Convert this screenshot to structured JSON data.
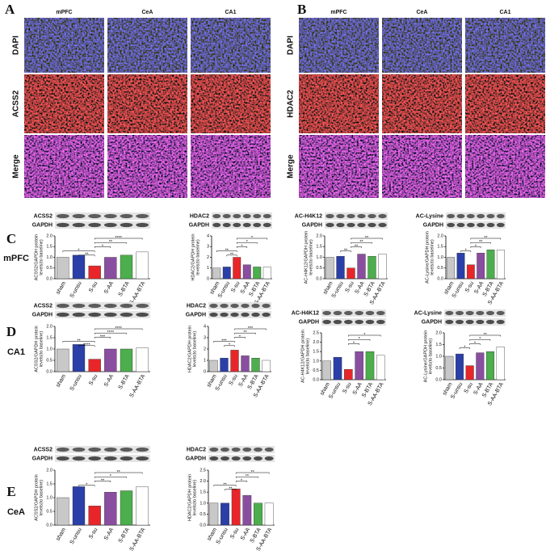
{
  "panels": [
    {
      "letter": "A",
      "columns": [
        "mPFC",
        "CeA",
        "CA1"
      ],
      "rows": [
        "DAPI",
        "ACSS2",
        "Merge"
      ]
    },
    {
      "letter": "B",
      "columns": [
        "mPFC",
        "CeA",
        "CA1"
      ],
      "rows": [
        "DAPI",
        "HDAC2",
        "Merge"
      ]
    }
  ],
  "row_labels": [
    {
      "letter": "C",
      "region": "mPFC"
    },
    {
      "letter": "D",
      "region": "CA1"
    },
    {
      "letter": "E",
      "region": "CeA"
    }
  ],
  "chart_data": [
    {
      "type": "bar",
      "protein": "ACSS2",
      "reference": "GAPDH",
      "ylabel": [
        "ACSS2/GAPDH protein",
        "levels(to baseline)"
      ],
      "categories": [
        "sham",
        "S-unsu",
        "S-su",
        "S-AA",
        "S-BTA",
        "S-AA-BTA"
      ],
      "values": [
        1.0,
        1.1,
        0.6,
        1.0,
        1.1,
        1.25
      ],
      "colors": [
        "#c8c8c8",
        "#2b3fa8",
        "#e8262a",
        "#8a4ea0",
        "#4cae4c",
        "#ffffff"
      ],
      "ylim": [
        0,
        2.0
      ],
      "yticks": [
        {
          "value": 0,
          "label": "0.0"
        },
        0.5,
        {
          "value": 1,
          "label": "1.0"
        },
        1.5,
        {
          "value": 2,
          "label": "2.0"
        }
      ],
      "brackets": [
        {
          "a": 2,
          "b": 5,
          "label": "****"
        },
        {
          "a": 2,
          "b": 4,
          "label": "**"
        },
        {
          "a": 2,
          "b": 3,
          "label": "*"
        },
        {
          "a": 0,
          "b": 2,
          "label": "*"
        },
        {
          "a": 1,
          "b": 2,
          "label": "**"
        }
      ]
    },
    {
      "type": "bar",
      "protein": "HDAC2",
      "reference": "GAPDH",
      "ylabel": [
        "HDAC2/GAPDH protein",
        "levels(to baseline)"
      ],
      "categories": [
        "sham",
        "S-unsu",
        "S-su",
        "S-AA",
        "S-BTA",
        "S-AA-BTA"
      ],
      "values": [
        1.0,
        1.1,
        2.0,
        1.3,
        1.1,
        1.1
      ],
      "colors": [
        "#c8c8c8",
        "#2b3fa8",
        "#e8262a",
        "#8a4ea0",
        "#4cae4c",
        "#ffffff"
      ],
      "ylim": [
        0,
        4
      ],
      "yticks": [
        0,
        1,
        2,
        3,
        4
      ],
      "brackets": [
        {
          "a": 2,
          "b": 5,
          "label": "*"
        },
        {
          "a": 2,
          "b": 4,
          "label": "*"
        },
        {
          "a": 2,
          "b": 3,
          "label": "*"
        },
        {
          "a": 0,
          "b": 2,
          "label": "**"
        },
        {
          "a": 1,
          "b": 2,
          "label": "**"
        }
      ]
    },
    {
      "type": "bar",
      "protein": "AC-H4K12",
      "reference": "GAPDH",
      "ylabel": [
        "AC-H4K12/GAPDH protein",
        "levels(to baseline)"
      ],
      "categories": [
        "sham",
        "S-unsu",
        "S-su",
        "S-AA",
        "S-BTA",
        "S-AA-BTA"
      ],
      "values": [
        1.0,
        1.05,
        0.5,
        1.15,
        1.05,
        1.15
      ],
      "colors": [
        "#c8c8c8",
        "#2b3fa8",
        "#e8262a",
        "#8a4ea0",
        "#4cae4c",
        "#ffffff"
      ],
      "ylim": [
        0,
        2.0
      ],
      "yticks": [
        {
          "value": 0,
          "label": "0.0"
        },
        0.5,
        {
          "value": 1,
          "label": "1.0"
        },
        1.5,
        {
          "value": 2,
          "label": "2.0"
        }
      ],
      "brackets": [
        {
          "a": 2,
          "b": 5,
          "label": "**"
        },
        {
          "a": 2,
          "b": 4,
          "label": "**"
        },
        {
          "a": 2,
          "b": 3,
          "label": "**"
        },
        {
          "a": 1,
          "b": 2,
          "label": "**"
        }
      ]
    },
    {
      "type": "bar",
      "protein": "AC-Lysine",
      "reference": "GAPDH",
      "ylabel": [
        "AC-Lysine/GAPDH protein",
        "levels(to baseline)"
      ],
      "categories": [
        "sham",
        "S-unsu",
        "S-su",
        "S-AA",
        "S-BTA",
        "S-AA-BTA"
      ],
      "values": [
        1.0,
        1.2,
        0.65,
        1.2,
        1.35,
        1.35
      ],
      "colors": [
        "#c8c8c8",
        "#2b3fa8",
        "#e8262a",
        "#8a4ea0",
        "#4cae4c",
        "#ffffff"
      ],
      "ylim": [
        0,
        2.0
      ],
      "yticks": [
        {
          "value": 0,
          "label": "0.0"
        },
        0.5,
        {
          "value": 1,
          "label": "1.0"
        },
        1.5,
        {
          "value": 2,
          "label": "2.0"
        }
      ],
      "brackets": [
        {
          "a": 2,
          "b": 5,
          "label": "**"
        },
        {
          "a": 2,
          "b": 4,
          "label": "**"
        },
        {
          "a": 2,
          "b": 3,
          "label": "*"
        },
        {
          "a": 1,
          "b": 2,
          "label": "*"
        }
      ]
    },
    {
      "type": "bar",
      "protein": "ACSS2",
      "reference": "GAPDH",
      "ylabel": [
        "ACSS2/GAPDH protein",
        "levels(to baseline)"
      ],
      "categories": [
        "sham",
        "S-unsu",
        "S-su",
        "S-AA",
        "S-BTA",
        "S-AA-BTA"
      ],
      "values": [
        1.0,
        1.2,
        0.55,
        1.0,
        1.0,
        1.05
      ],
      "colors": [
        "#c8c8c8",
        "#2b3fa8",
        "#e8262a",
        "#8a4ea0",
        "#4cae4c",
        "#ffffff"
      ],
      "ylim": [
        0,
        2.0
      ],
      "yticks": [
        {
          "value": 0,
          "label": "0.0"
        },
        0.5,
        {
          "value": 1,
          "label": "1.0"
        },
        1.5,
        {
          "value": 2,
          "label": "2.0"
        }
      ],
      "brackets": [
        {
          "a": 2,
          "b": 5,
          "label": "****"
        },
        {
          "a": 2,
          "b": 4,
          "label": "****"
        },
        {
          "a": 2,
          "b": 3,
          "label": "***"
        },
        {
          "a": 0,
          "b": 2,
          "label": "**"
        },
        {
          "a": 1,
          "b": 2,
          "label": "****"
        }
      ]
    },
    {
      "type": "bar",
      "protein": "HDAC2",
      "reference": "GAPDH",
      "ylabel": [
        "HDAC2/GAPDH protein",
        "levels(to baseline)"
      ],
      "categories": [
        "sham",
        "S-unsu",
        "S-su",
        "S-AA",
        "S-BTA",
        "S-AA-BTA"
      ],
      "values": [
        1.0,
        1.2,
        1.9,
        1.4,
        1.2,
        1.0
      ],
      "colors": [
        "#c8c8c8",
        "#2b3fa8",
        "#e8262a",
        "#8a4ea0",
        "#4cae4c",
        "#ffffff"
      ],
      "ylim": [
        0,
        4
      ],
      "yticks": [
        0,
        1,
        2,
        3,
        4
      ],
      "brackets": [
        {
          "a": 2,
          "b": 5,
          "label": "***"
        },
        {
          "a": 2,
          "b": 4,
          "label": "**"
        },
        {
          "a": 2,
          "b": 3,
          "label": "*"
        },
        {
          "a": 0,
          "b": 2,
          "label": "***"
        },
        {
          "a": 1,
          "b": 2,
          "label": "*"
        }
      ]
    },
    {
      "type": "bar",
      "protein": "AC-H4K12",
      "reference": "GAPDH",
      "ylabel": [
        "AC-H4K12/GAPDH protein",
        "levels(to baseline)"
      ],
      "categories": [
        "sham",
        "S-unsu",
        "S-su",
        "S-AA",
        "S-BTA",
        "S-AA-BTA"
      ],
      "values": [
        1.0,
        1.2,
        0.55,
        1.5,
        1.5,
        1.3
      ],
      "colors": [
        "#c8c8c8",
        "#2b3fa8",
        "#e8262a",
        "#8a4ea0",
        "#4cae4c",
        "#ffffff"
      ],
      "ylim": [
        0,
        2.5
      ],
      "yticks": [
        {
          "value": 0,
          "label": "0.0"
        },
        0.5,
        {
          "value": 1,
          "label": "1.0"
        },
        1.5,
        {
          "value": 2,
          "label": "2.0"
        },
        2.5
      ],
      "brackets": [
        {
          "a": 2,
          "b": 5,
          "label": "*"
        },
        {
          "a": 2,
          "b": 4,
          "label": "*"
        },
        {
          "a": 2,
          "b": 3,
          "label": "*"
        }
      ]
    },
    {
      "type": "bar",
      "protein": "AC-Lysine",
      "reference": "GAPDH",
      "ylabel": [
        "AC-Lysine/GAPDH protein",
        "levels(to baseline)"
      ],
      "categories": [
        "sham",
        "S-unsu",
        "S-su",
        "S-AA",
        "S-BTA",
        "S-AA-BTA"
      ],
      "values": [
        1.0,
        1.1,
        0.6,
        1.15,
        1.2,
        1.4
      ],
      "colors": [
        "#c8c8c8",
        "#2b3fa8",
        "#e8262a",
        "#8a4ea0",
        "#4cae4c",
        "#ffffff"
      ],
      "ylim": [
        0,
        2.0
      ],
      "yticks": [
        {
          "value": 0,
          "label": "0.0"
        },
        0.5,
        {
          "value": 1,
          "label": "1.0"
        },
        1.5,
        {
          "value": 2,
          "label": "2.0"
        }
      ],
      "brackets": [
        {
          "a": 2,
          "b": 5,
          "label": "**"
        },
        {
          "a": 2,
          "b": 4,
          "label": "*"
        },
        {
          "a": 2,
          "b": 3,
          "label": "*"
        },
        {
          "a": 1,
          "b": 2,
          "label": "*"
        }
      ]
    },
    {
      "type": "bar",
      "protein": "ACSS2",
      "reference": "GAPDH",
      "ylabel": [
        "ACSS2/GAPDH protein",
        "levels(to baseline)"
      ],
      "categories": [
        "sham",
        "S-unsu",
        "S-su",
        "S-AA",
        "S-BTA",
        "S-AA-BTA"
      ],
      "values": [
        1.0,
        1.4,
        0.7,
        1.2,
        1.25,
        1.4
      ],
      "colors": [
        "#c8c8c8",
        "#2b3fa8",
        "#e8262a",
        "#8a4ea0",
        "#4cae4c",
        "#ffffff"
      ],
      "ylim": [
        0,
        2.0
      ],
      "yticks": [
        {
          "value": 0,
          "label": "0.0"
        },
        0.5,
        {
          "value": 1,
          "label": "1.0"
        },
        1.5,
        {
          "value": 2,
          "label": "2.0"
        }
      ],
      "brackets": [
        {
          "a": 2,
          "b": 5,
          "label": "**"
        },
        {
          "a": 2,
          "b": 4,
          "label": "*"
        },
        {
          "a": 2,
          "b": 3,
          "label": "**"
        },
        {
          "a": 1,
          "b": 2,
          "label": "*"
        }
      ]
    },
    {
      "type": "bar",
      "protein": "HDAC2",
      "reference": "GAPDH",
      "ylabel": [
        "HDAC2/GAPDH protein",
        "levels(to baseline)"
      ],
      "categories": [
        "sham",
        "S-unsu",
        "S-su",
        "S-AA",
        "S-BTA",
        "S-AA-BTA"
      ],
      "values": [
        1.0,
        1.0,
        1.65,
        1.35,
        1.0,
        1.0
      ],
      "colors": [
        "#c8c8c8",
        "#2b3fa8",
        "#e8262a",
        "#8a4ea0",
        "#4cae4c",
        "#ffffff"
      ],
      "ylim": [
        0,
        2.5
      ],
      "yticks": [
        {
          "value": 0,
          "label": "0.0"
        },
        0.5,
        {
          "value": 1,
          "label": "1.0"
        },
        1.5,
        {
          "value": 2,
          "label": "2.0"
        },
        2.5
      ],
      "brackets": [
        {
          "a": 2,
          "b": 5,
          "label": "**"
        },
        {
          "a": 2,
          "b": 4,
          "label": "**"
        },
        {
          "a": 2,
          "b": 3,
          "label": "*"
        },
        {
          "a": 0,
          "b": 2,
          "label": "**"
        },
        {
          "a": 1,
          "b": 2,
          "label": "**"
        }
      ]
    }
  ]
}
